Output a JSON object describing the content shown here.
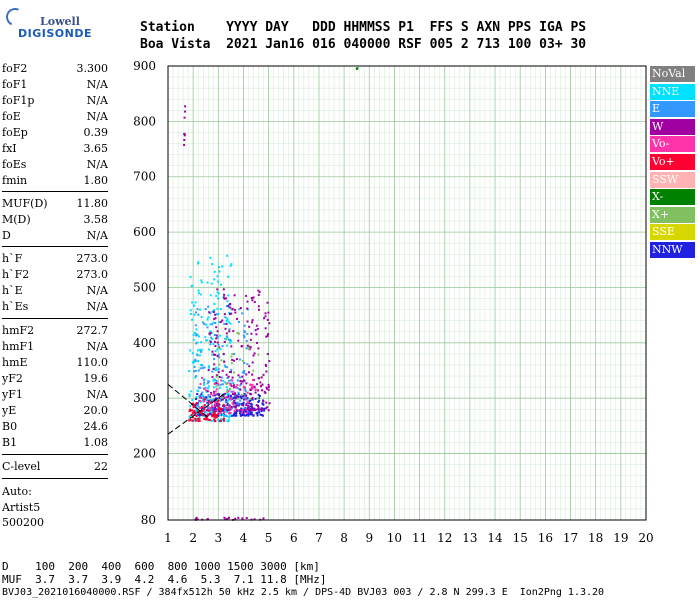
{
  "logo": {
    "line1": "Lowell",
    "line2": "DIGISONDE"
  },
  "header": {
    "row1": "Station    YYYY DAY   DDD HHMMSS P1  FFS S AXN PPS IGA PS",
    "row2": "Boa Vista  2021 Jan16 016 040000 RSF 005 2 713 100 03+ 30"
  },
  "params": [
    {
      "k": "foF2",
      "v": "3.300"
    },
    {
      "k": "foF1",
      "v": "N/A"
    },
    {
      "k": "foF1p",
      "v": "N/A"
    },
    {
      "k": "foE",
      "v": "N/A"
    },
    {
      "k": "foEp",
      "v": "0.39"
    },
    {
      "k": "fxI",
      "v": "3.65"
    },
    {
      "k": "foEs",
      "v": "N/A"
    },
    {
      "k": "fmin",
      "v": "1.80"
    },
    {
      "k": "MUF(D)",
      "v": "11.80"
    },
    {
      "k": "M(D)",
      "v": "3.58"
    },
    {
      "k": "D",
      "v": "N/A"
    },
    {
      "k": "h`F",
      "v": "273.0"
    },
    {
      "k": "h`F2",
      "v": "273.0"
    },
    {
      "k": "h`E",
      "v": "N/A"
    },
    {
      "k": "h`Es",
      "v": "N/A"
    },
    {
      "k": "hmF2",
      "v": "272.7"
    },
    {
      "k": "hmF1",
      "v": "N/A"
    },
    {
      "k": "hmE",
      "v": "110.0"
    },
    {
      "k": "yF2",
      "v": "19.6"
    },
    {
      "k": "yF1",
      "v": "N/A"
    },
    {
      "k": "yE",
      "v": "20.0"
    },
    {
      "k": "B0",
      "v": "24.6"
    },
    {
      "k": "B1",
      "v": "1.08"
    },
    {
      "k": "C-level",
      "v": "22"
    }
  ],
  "autoscaler": {
    "line1": "Auto:",
    "line2": "Artist5",
    "line3": "500200"
  },
  "legend": [
    {
      "label": "NoVal",
      "color": "#808080"
    },
    {
      "label": "NNE",
      "color": "#00e0ff"
    },
    {
      "label": "E",
      "color": "#3399ff"
    },
    {
      "label": "W",
      "color": "#a000a0"
    },
    {
      "label": "Vo-",
      "color": "#ff33aa"
    },
    {
      "label": "Vo+",
      "color": "#ff0033"
    },
    {
      "label": "SSW",
      "color": "#ffb3b3"
    },
    {
      "label": "X-",
      "color": "#008000"
    },
    {
      "label": "X+",
      "color": "#80c060"
    },
    {
      "label": "SSE",
      "color": "#d6d600"
    },
    {
      "label": "NNW",
      "color": "#2020e0"
    }
  ],
  "footer": {
    "row1": "D    100  200  400  600  800 1000 1500 3000 [km]",
    "row2": "MUF  3.7  3.7  3.9  4.2  4.6  5.3  7.1 11.8 [MHz]",
    "row3": "BVJ03_2021016040000.RSF / 384fx512h 50 kHz 2.5 km / DPS-4D BVJ03 003 / 2.8 N 299.3 E  Ion2Png 1.3.20"
  },
  "chart_data": {
    "type": "scatter",
    "xlim": [
      1,
      20
    ],
    "ylim": [
      80,
      900
    ],
    "x_ticks": [
      1,
      2,
      3,
      4,
      5,
      6,
      7,
      8,
      9,
      10,
      11,
      12,
      13,
      14,
      15,
      16,
      17,
      18,
      19,
      20
    ],
    "y_ticks": [
      80,
      200,
      300,
      400,
      500,
      600,
      700,
      800,
      900
    ],
    "grid": true,
    "clusters": [
      {
        "name": "NNW",
        "x": [
          2.0,
          4.8
        ],
        "y": [
          270,
          310
        ],
        "color": "#2020e0",
        "n": 260
      },
      {
        "name": "NNE",
        "x": [
          1.8,
          3.5
        ],
        "y": [
          260,
          560
        ],
        "color": "#00e0ff",
        "n": 220
      },
      {
        "name": "E",
        "x": [
          2.0,
          4.2
        ],
        "y": [
          280,
          480
        ],
        "color": "#3399ff",
        "n": 150
      },
      {
        "name": "W",
        "x": [
          2.5,
          5.0
        ],
        "y": [
          280,
          500
        ],
        "color": "#a000a0",
        "n": 240
      },
      {
        "name": "Vo-",
        "x": [
          2.2,
          4.5
        ],
        "y": [
          275,
          340
        ],
        "color": "#ff33aa",
        "n": 70
      },
      {
        "name": "Vo+",
        "x": [
          1.8,
          3.2
        ],
        "y": [
          260,
          300
        ],
        "color": "#ff0033",
        "n": 80
      },
      {
        "name": "X+",
        "x": [
          2.8,
          4.6
        ],
        "y": [
          300,
          420
        ],
        "color": "#80c060",
        "n": 25
      },
      {
        "name": "W",
        "x": [
          1.6,
          1.65
        ],
        "y": [
          730,
          830
        ],
        "color": "#a000a0",
        "n": 8
      },
      {
        "name": "X-",
        "x": [
          8.45,
          8.5
        ],
        "y": [
          890,
          902
        ],
        "color": "#008000",
        "n": 3
      },
      {
        "name": "W",
        "x": [
          1.9,
          4.8
        ],
        "y": [
          82,
          86
        ],
        "color": "#a000a0",
        "n": 20
      }
    ],
    "profile_lines": [
      {
        "from": [
          1.0,
          235
        ],
        "to": [
          3.3,
          310
        ]
      },
      {
        "from": [
          1.0,
          325
        ],
        "to": [
          2.6,
          265
        ]
      }
    ]
  }
}
